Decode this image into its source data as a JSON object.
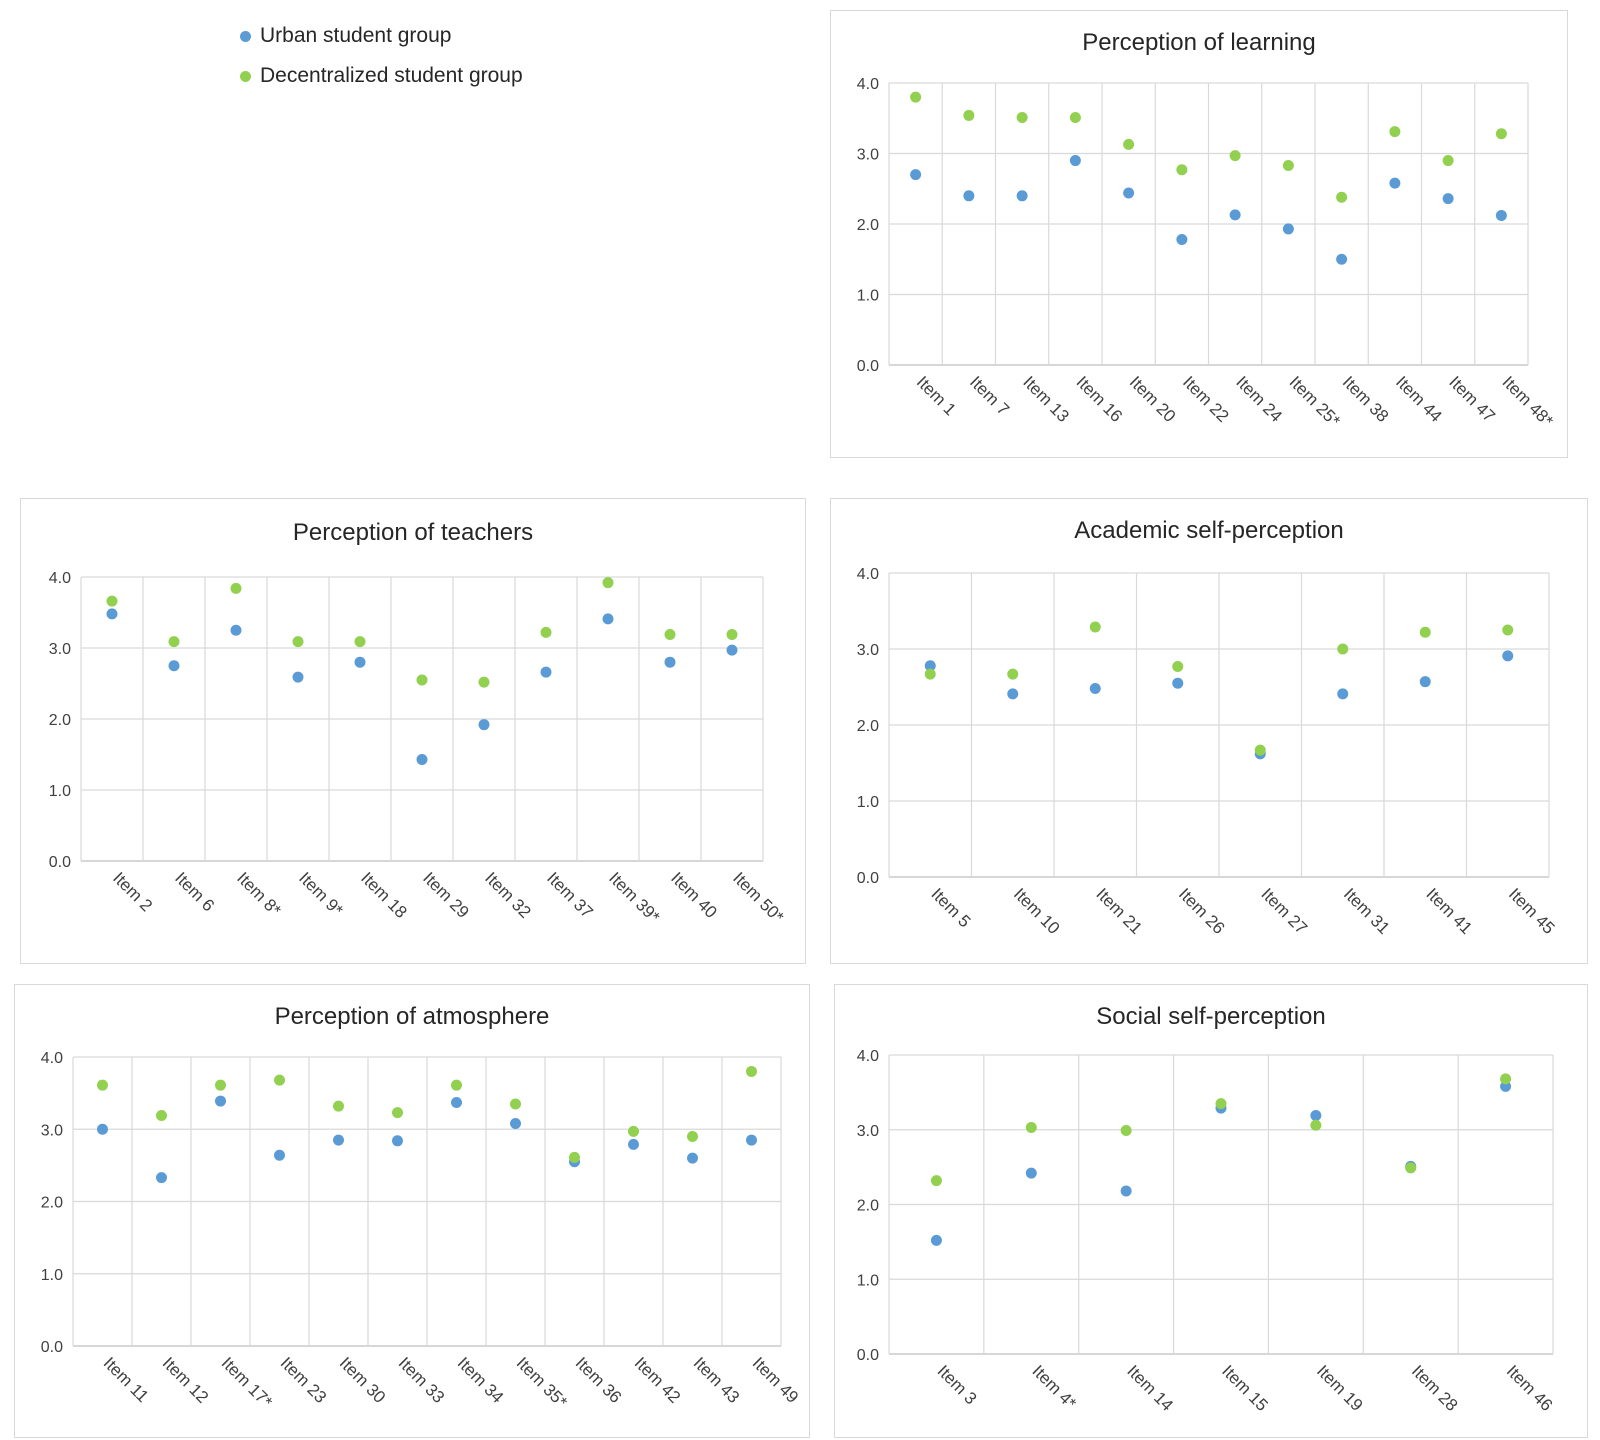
{
  "legend": {
    "urban_label": "Urban student group",
    "decentralized_label": "Decentralized student group",
    "urban_color": "#5b9bd5",
    "decentralized_color": "#92d050"
  },
  "chart_data": [
    {
      "id": "learning",
      "type": "scatter",
      "title": "Perception of learning",
      "ylim": [
        0,
        4
      ],
      "yticks": [
        "0.0",
        "1.0",
        "2.0",
        "3.0",
        "4.0"
      ],
      "categories": [
        "Item 1",
        "Item 7",
        "Item 13",
        "Item 16",
        "Item 20",
        "Item 22",
        "Item 24",
        "Item 25*",
        "Item 38",
        "Item 44",
        "Item 47",
        "Item 48*"
      ],
      "series": [
        {
          "name": "Urban student group",
          "values": [
            2.7,
            2.4,
            2.4,
            2.9,
            2.44,
            1.78,
            2.13,
            1.93,
            1.5,
            2.58,
            2.36,
            2.12
          ]
        },
        {
          "name": "Decentralized student group",
          "values": [
            3.8,
            3.54,
            3.51,
            3.51,
            3.13,
            2.77,
            2.97,
            2.83,
            2.38,
            3.31,
            2.9,
            3.28
          ]
        }
      ]
    },
    {
      "id": "teachers",
      "type": "scatter",
      "title": "Perception of teachers",
      "ylim": [
        0,
        4
      ],
      "yticks": [
        "0.0",
        "1.0",
        "2.0",
        "3.0",
        "4.0"
      ],
      "categories": [
        "Item 2",
        "Item 6",
        "Item 8*",
        "Item 9*",
        "Item 18",
        "Item 29",
        "Item 32",
        "Item 37",
        "Item 39*",
        "Item 40",
        "Item 50*"
      ],
      "series": [
        {
          "name": "Urban student group",
          "values": [
            3.48,
            2.75,
            3.25,
            2.59,
            2.8,
            1.43,
            1.92,
            2.66,
            3.41,
            2.8,
            2.97
          ]
        },
        {
          "name": "Decentralized student group",
          "values": [
            3.66,
            3.09,
            3.84,
            3.09,
            3.09,
            2.55,
            2.52,
            3.22,
            3.92,
            3.19,
            3.19
          ]
        }
      ]
    },
    {
      "id": "academic",
      "type": "scatter",
      "title": "Academic self-perception",
      "ylim": [
        0,
        4
      ],
      "yticks": [
        "0.0",
        "1.0",
        "2.0",
        "3.0",
        "4.0"
      ],
      "categories": [
        "Item 5",
        "Item 10",
        "Item 21",
        "Item 26",
        "Item 27",
        "Item 31",
        "Item 41",
        "Item 45"
      ],
      "series": [
        {
          "name": "Urban student group",
          "values": [
            2.78,
            2.41,
            2.48,
            2.55,
            1.62,
            2.41,
            2.57,
            2.91
          ]
        },
        {
          "name": "Decentralized student group",
          "values": [
            2.67,
            2.67,
            3.29,
            2.77,
            1.67,
            3.0,
            3.22,
            3.25
          ]
        }
      ]
    },
    {
      "id": "atmosphere",
      "type": "scatter",
      "title": "Perception of atmosphere",
      "ylim": [
        0,
        4
      ],
      "yticks": [
        "0.0",
        "1.0",
        "2.0",
        "3.0",
        "4.0"
      ],
      "categories": [
        "Item 11",
        "Item 12",
        "Item 17*",
        "Item 23",
        "Item 30",
        "Item 33",
        "Item 34",
        "Item 35*",
        "Item 36",
        "Item 42",
        "Item 43",
        "Item 49"
      ],
      "series": [
        {
          "name": "Urban student group",
          "values": [
            3.0,
            2.33,
            3.39,
            2.64,
            2.85,
            2.84,
            3.37,
            3.08,
            2.55,
            2.79,
            2.6,
            2.85
          ]
        },
        {
          "name": "Decentralized student group",
          "values": [
            3.61,
            3.19,
            3.61,
            3.68,
            3.32,
            3.23,
            3.61,
            3.35,
            2.61,
            2.97,
            2.9,
            3.8
          ]
        }
      ]
    },
    {
      "id": "social",
      "type": "scatter",
      "title": "Social self-perception",
      "ylim": [
        0,
        4
      ],
      "yticks": [
        "0.0",
        "1.0",
        "2.0",
        "3.0",
        "4.0"
      ],
      "categories": [
        "Item 3",
        "Item 4*",
        "Item 14",
        "Item 15",
        "Item 19",
        "Item 28",
        "Item 46"
      ],
      "series": [
        {
          "name": "Urban student group",
          "values": [
            1.52,
            2.42,
            2.18,
            3.29,
            3.19,
            2.51,
            3.58
          ]
        },
        {
          "name": "Decentralized student group",
          "values": [
            2.32,
            3.03,
            2.99,
            3.35,
            3.06,
            2.49,
            3.68
          ]
        }
      ]
    }
  ]
}
